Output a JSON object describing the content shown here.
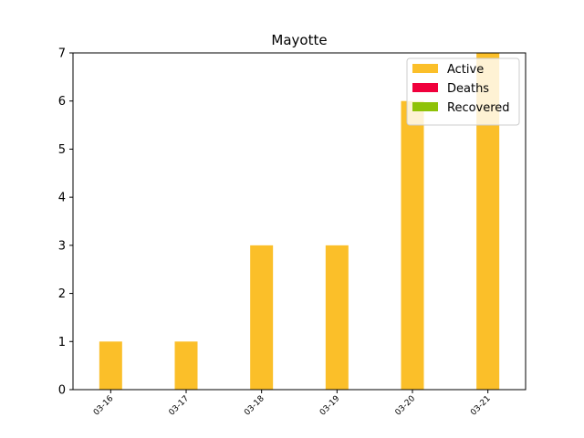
{
  "chart_data": {
    "type": "bar",
    "stacked": true,
    "title": "Mayotte",
    "xlabel": "",
    "ylabel": "",
    "categories": [
      "03-16",
      "03-17",
      "03-18",
      "03-19",
      "03-20",
      "03-21"
    ],
    "series": [
      {
        "name": "Active",
        "color": "#fbbf29",
        "values": [
          1,
          1,
          3,
          3,
          6,
          7
        ]
      },
      {
        "name": "Deaths",
        "color": "#f0003c",
        "values": [
          0,
          0,
          0,
          0,
          0,
          0
        ]
      },
      {
        "name": "Recovered",
        "color": "#8fc208",
        "values": [
          0,
          0,
          0,
          0,
          0,
          0
        ]
      }
    ],
    "ylim": [
      0,
      7
    ],
    "yticks": [
      0,
      1,
      2,
      3,
      4,
      5,
      6,
      7
    ],
    "grid": false,
    "legend_position": "top-right"
  }
}
